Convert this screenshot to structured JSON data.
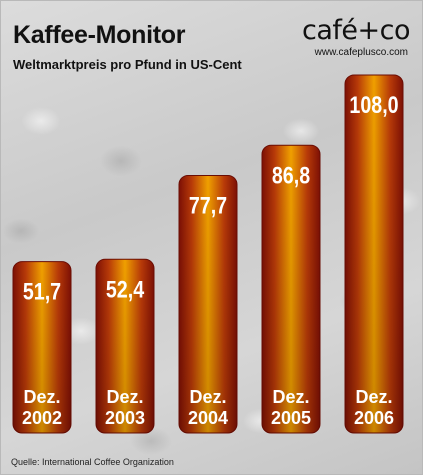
{
  "header": {
    "title": "Kaffee-Monitor",
    "subtitle": "Weltmarktpreis pro Pfund in US-Cent"
  },
  "brand": {
    "logo_text": "café+co",
    "url": "www.cafeplusco.com"
  },
  "footer": {
    "source": "Quelle: International Coffee Organization"
  },
  "colors": {
    "bar_outer": "#8a1406",
    "bar_inner": "#f0a000",
    "label_text": "#ffffff"
  },
  "chart_data": {
    "type": "bar",
    "title": "Kaffee-Monitor",
    "subtitle": "Weltmarktpreis pro Pfund in US-Cent",
    "categories": [
      {
        "line1": "Dez.",
        "line2": "2002"
      },
      {
        "line1": "Dez.",
        "line2": "2003"
      },
      {
        "line1": "Dez.",
        "line2": "2004"
      },
      {
        "line1": "Dez.",
        "line2": "2005"
      },
      {
        "line1": "Dez.",
        "line2": "2006"
      }
    ],
    "values": [
      51.7,
      52.4,
      77.7,
      86.8,
      108.0
    ],
    "value_labels": [
      "51,7",
      "52,4",
      "77,7",
      "86,8",
      "108,0"
    ],
    "ylim": [
      0,
      108
    ],
    "grid": false,
    "legend": "none"
  }
}
